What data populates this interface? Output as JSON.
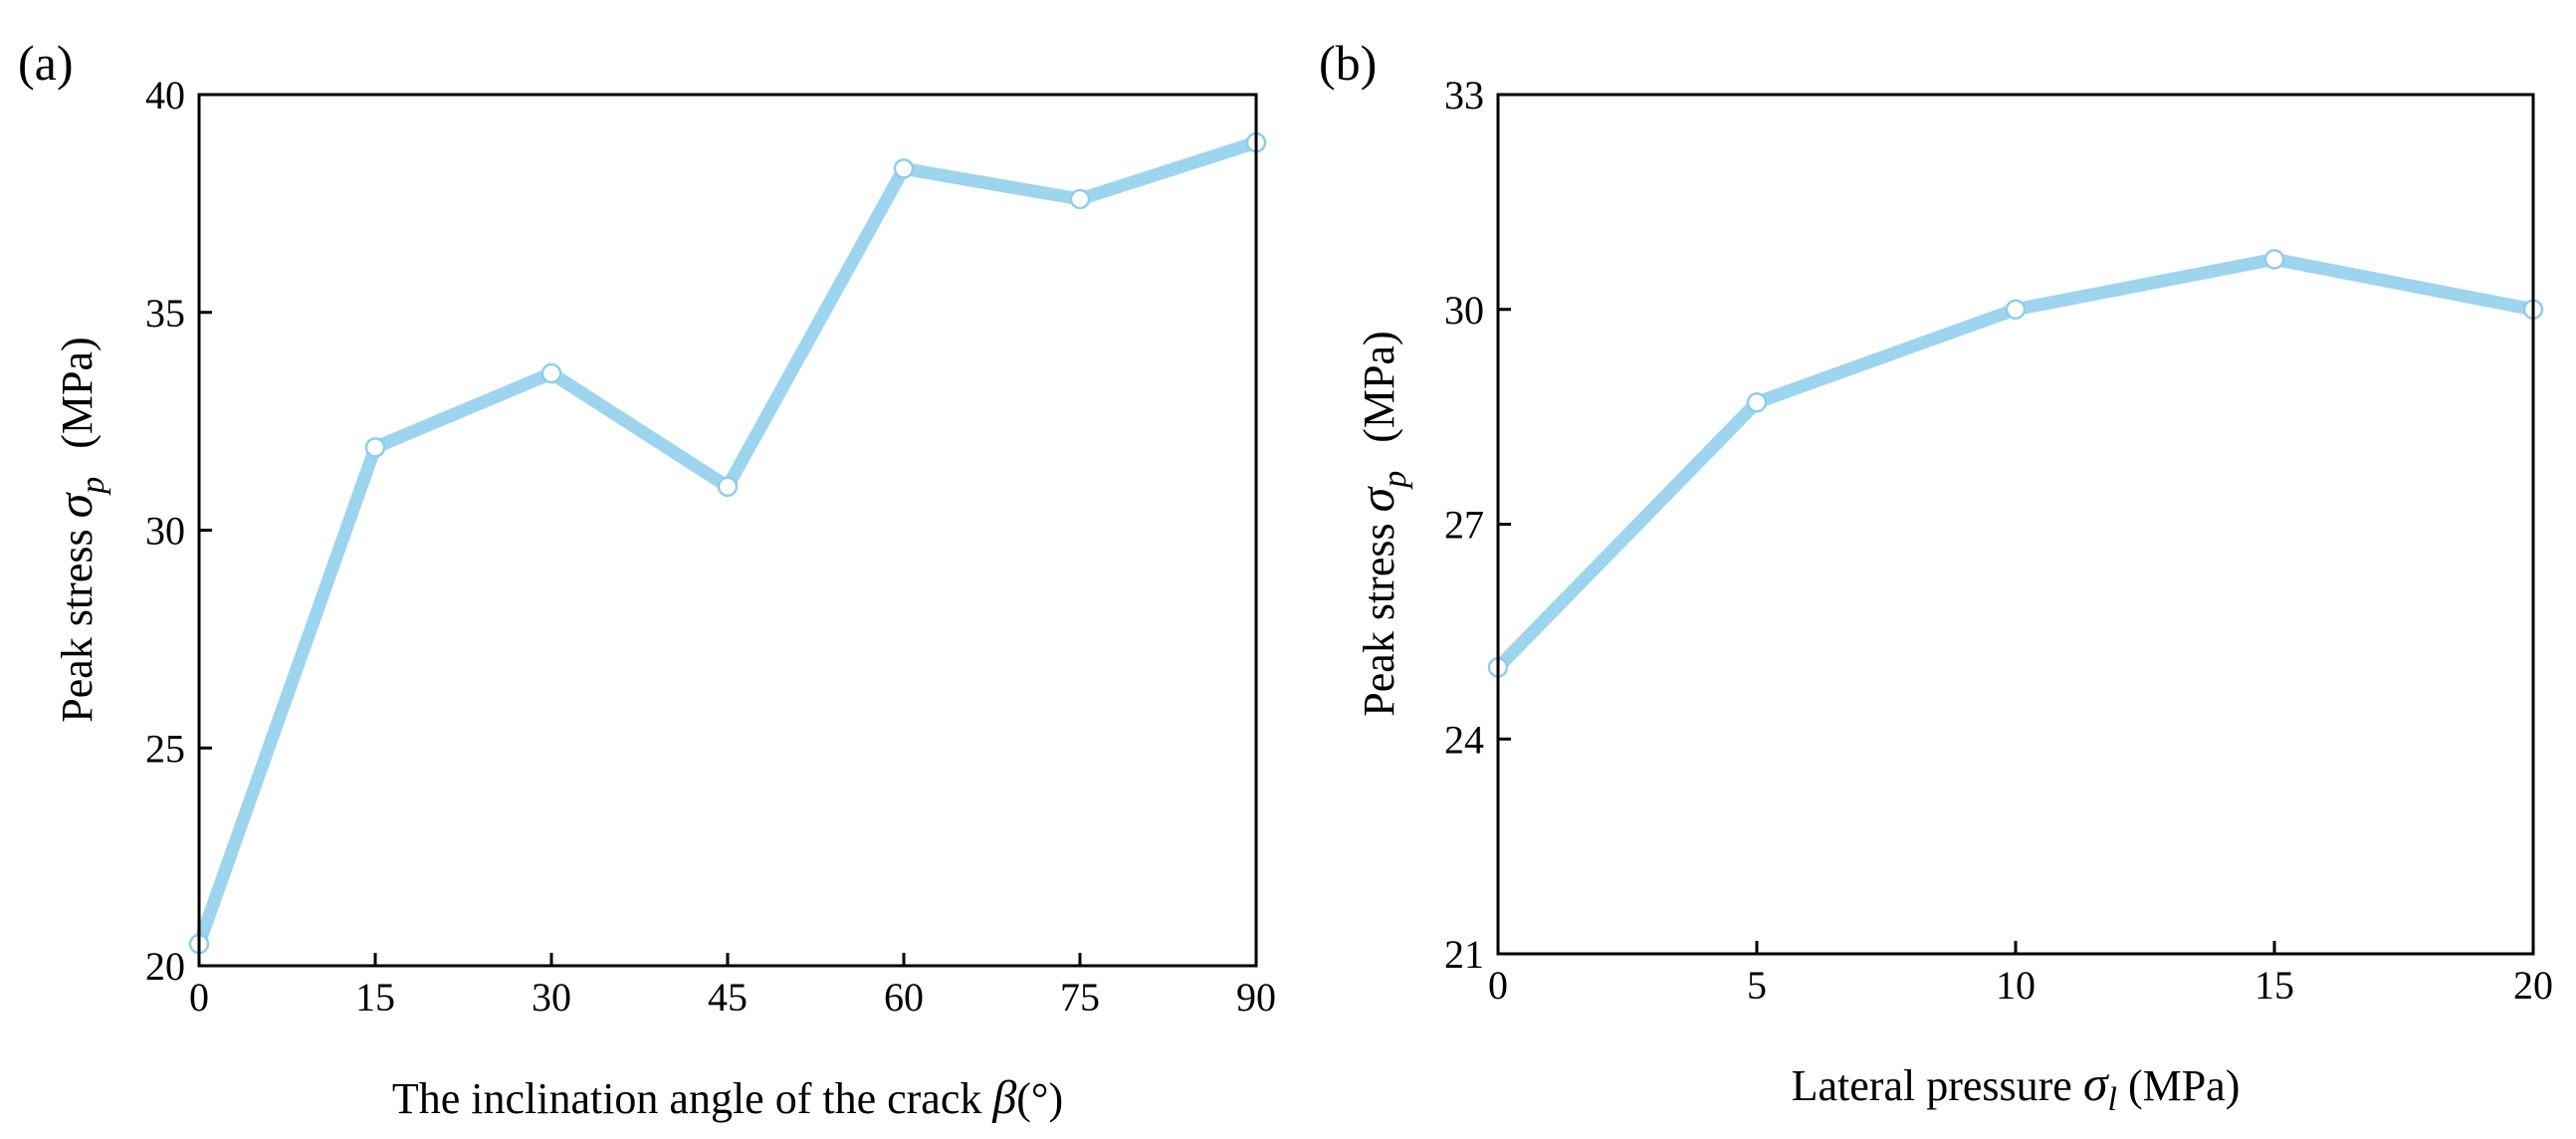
{
  "chart_data": [
    {
      "type": "line",
      "panel": "(a)",
      "x": [
        0,
        15,
        30,
        45,
        60,
        75,
        90
      ],
      "series": [
        {
          "values": [
            20.5,
            31.9,
            33.6,
            31.0,
            38.3,
            37.6,
            38.9
          ]
        }
      ],
      "xlim": [
        0,
        90
      ],
      "ylim": [
        20,
        40
      ],
      "xticks": [
        0,
        15,
        30,
        45,
        60,
        75,
        90
      ],
      "yticks": [
        20,
        25,
        30,
        35,
        40
      ],
      "xlabel": {
        "text": "The inclination angle of the crack ",
        "symbol": "β",
        "unit": "(°)"
      },
      "ylabel": {
        "text": "Peak stress ",
        "symbol": "σ",
        "sub": "p",
        "unit": "(MPa)"
      },
      "grid": false,
      "colors": {
        "line": "#9dd5ef",
        "marker_edge": "#8fcde9"
      }
    },
    {
      "type": "line",
      "panel": "(b)",
      "x": [
        0,
        5,
        10,
        15,
        20
      ],
      "series": [
        {
          "values": [
            25.0,
            28.7,
            30.0,
            30.7,
            30.0
          ]
        }
      ],
      "xlim": [
        0,
        20
      ],
      "ylim": [
        21,
        33
      ],
      "xticks": [
        0,
        5,
        10,
        15,
        20
      ],
      "yticks": [
        21,
        24,
        27,
        30,
        33
      ],
      "xlabel": {
        "text": "Lateral pressure ",
        "symbol": "σ",
        "sub": "l",
        "unit": " (MPa)"
      },
      "ylabel": {
        "text": "Peak stress ",
        "symbol": "σ",
        "sub": "p",
        "unit": "(MPa)"
      },
      "grid": false,
      "colors": {
        "line": "#9dd5ef",
        "marker_edge": "#8fcde9"
      }
    }
  ]
}
